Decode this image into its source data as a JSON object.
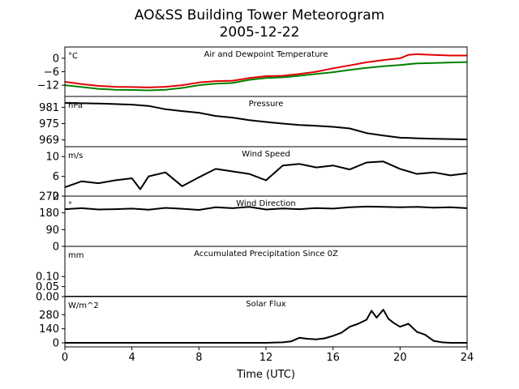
{
  "title_line1": "AO&SS Building Tower Meteorogram",
  "title_line2": "2005-12-22",
  "xlabel": "Time (UTC)",
  "chart_data": {
    "type": "line",
    "x_range": [
      0,
      24
    ],
    "x_ticks": [
      0,
      4,
      8,
      12,
      16,
      20,
      24
    ],
    "panels": [
      {
        "id": "temperature",
        "title": "Air and Dewpoint Temperature",
        "unit": "°C",
        "ylim": [
          -17,
          5
        ],
        "yticks": [
          0,
          -6,
          -12
        ],
        "ytick_labels": [
          "0",
          "−6",
          "−12"
        ],
        "series": [
          {
            "color": "#e00000",
            "x": [
              0,
              1,
              2,
              3,
              4,
              5,
              6,
              7,
              8,
              9,
              10,
              11,
              12,
              13,
              14,
              15,
              16,
              17,
              18,
              19,
              20,
              20.5,
              21,
              22,
              23,
              24
            ],
            "y": [
              -10.5,
              -11.5,
              -12.3,
              -12.7,
              -12.8,
              -13.0,
              -12.7,
              -12.0,
              -10.8,
              -10.2,
              -10.0,
              -8.8,
              -8.0,
              -7.8,
              -7.0,
              -6.0,
              -4.5,
              -3.2,
              -1.8,
              -0.8,
              0.0,
              1.5,
              1.8,
              1.5,
              1.2,
              1.2
            ]
          },
          {
            "color": "#008000",
            "x": [
              0,
              1,
              2,
              3,
              4,
              5,
              6,
              7,
              8,
              9,
              10,
              11,
              12,
              13,
              14,
              15,
              16,
              17,
              18,
              19,
              20,
              21,
              22,
              23,
              24
            ],
            "y": [
              -12.0,
              -12.8,
              -13.6,
              -14.0,
              -14.1,
              -14.3,
              -14.0,
              -13.2,
              -12.0,
              -11.3,
              -11.0,
              -9.6,
              -8.8,
              -8.5,
              -7.8,
              -7.0,
              -6.2,
              -5.2,
              -4.3,
              -3.6,
              -3.0,
              -2.3,
              -2.1,
              -1.9,
              -1.7
            ]
          }
        ]
      },
      {
        "id": "pressure",
        "title": "Pressure",
        "unit": "hPa",
        "ylim": [
          966.5,
          985
        ],
        "yticks": [
          981,
          975,
          969
        ],
        "ytick_labels": [
          "981",
          "975",
          "969"
        ],
        "series": [
          {
            "color": "#000000",
            "x": [
              0,
              2,
              4,
              5,
              6,
              7,
              8,
              9,
              10,
              11,
              12,
              13,
              14,
              15,
              16,
              17,
              18,
              19,
              20,
              21,
              22,
              23,
              24
            ],
            "y": [
              982.6,
              982.4,
              982.0,
              981.5,
              980.3,
              979.6,
              979.0,
              977.8,
              977.2,
              976.3,
              975.6,
              975.0,
              974.5,
              974.2,
              973.8,
              973.2,
              971.5,
              970.6,
              969.8,
              969.6,
              969.4,
              969.3,
              969.2
            ]
          }
        ]
      },
      {
        "id": "wind_speed",
        "title": "Wind Speed",
        "unit": "m/s",
        "ylim": [
          2,
          12
        ],
        "yticks": [
          10,
          6,
          2
        ],
        "ytick_labels": [
          "10",
          "6",
          "2"
        ],
        "series": [
          {
            "color": "#000000",
            "x": [
              0,
              1,
              2,
              3,
              4,
              4.5,
              5,
              6,
              7,
              8,
              9,
              10,
              11,
              12,
              13,
              14,
              15,
              16,
              17,
              18,
              19,
              20,
              21,
              22,
              23,
              24
            ],
            "y": [
              3.8,
              5.0,
              4.6,
              5.2,
              5.6,
              3.4,
              6.0,
              6.8,
              4.0,
              5.8,
              7.5,
              7.0,
              6.5,
              5.2,
              8.2,
              8.5,
              7.8,
              8.2,
              7.4,
              8.8,
              9.0,
              7.5,
              6.5,
              6.8,
              6.2,
              6.6
            ]
          }
        ]
      },
      {
        "id": "wind_direction",
        "title": "Wind Direction",
        "unit": "°",
        "ylim": [
          0,
          270
        ],
        "yticks": [
          270,
          180,
          90,
          0
        ],
        "ytick_labels": [
          "270",
          "180",
          "90",
          "0"
        ],
        "series": [
          {
            "color": "#000000",
            "x": [
              0,
              1,
              2,
              3,
              4,
              5,
              6,
              7,
              8,
              9,
              10,
              11,
              12,
              13,
              14,
              15,
              16,
              17,
              18,
              19,
              20,
              21,
              22,
              23,
              24
            ],
            "y": [
              200,
              205,
              198,
              200,
              203,
              197,
              207,
              202,
              196,
              210,
              205,
              212,
              198,
              204,
              200,
              206,
              203,
              210,
              214,
              212,
              210,
              212,
              208,
              210,
              205
            ]
          }
        ]
      },
      {
        "id": "precipitation",
        "title": "Accumulated Precipitation Since 0Z",
        "unit": "mm",
        "ylim": [
          0,
          0.25
        ],
        "yticks": [
          0.1,
          0.05,
          0.0
        ],
        "ytick_labels": [
          "0.10",
          "0.05",
          "0.00"
        ],
        "series": [
          {
            "color": "#000000",
            "x": [
              0,
              24
            ],
            "y": [
              0,
              0
            ]
          }
        ]
      },
      {
        "id": "solar",
        "title": "Solar Flux",
        "unit": "W/m^2",
        "ylim": [
          -40,
          460
        ],
        "yticks": [
          280,
          140,
          0
        ],
        "ytick_labels": [
          "280",
          "140",
          "0"
        ],
        "series": [
          {
            "color": "#000000",
            "x": [
              0,
              12,
              13,
              13.5,
              14,
              14.5,
              15,
              15.5,
              16,
              16.5,
              17,
              17.5,
              18,
              18.3,
              18.6,
              19,
              19.3,
              19.6,
              20,
              20.5,
              21,
              21.5,
              22,
              22.5,
              23,
              24
            ],
            "y": [
              0,
              0,
              5,
              15,
              50,
              40,
              35,
              45,
              70,
              100,
              160,
              190,
              230,
              320,
              250,
              330,
              240,
              200,
              160,
              190,
              110,
              80,
              20,
              5,
              0,
              0
            ]
          }
        ]
      }
    ]
  }
}
